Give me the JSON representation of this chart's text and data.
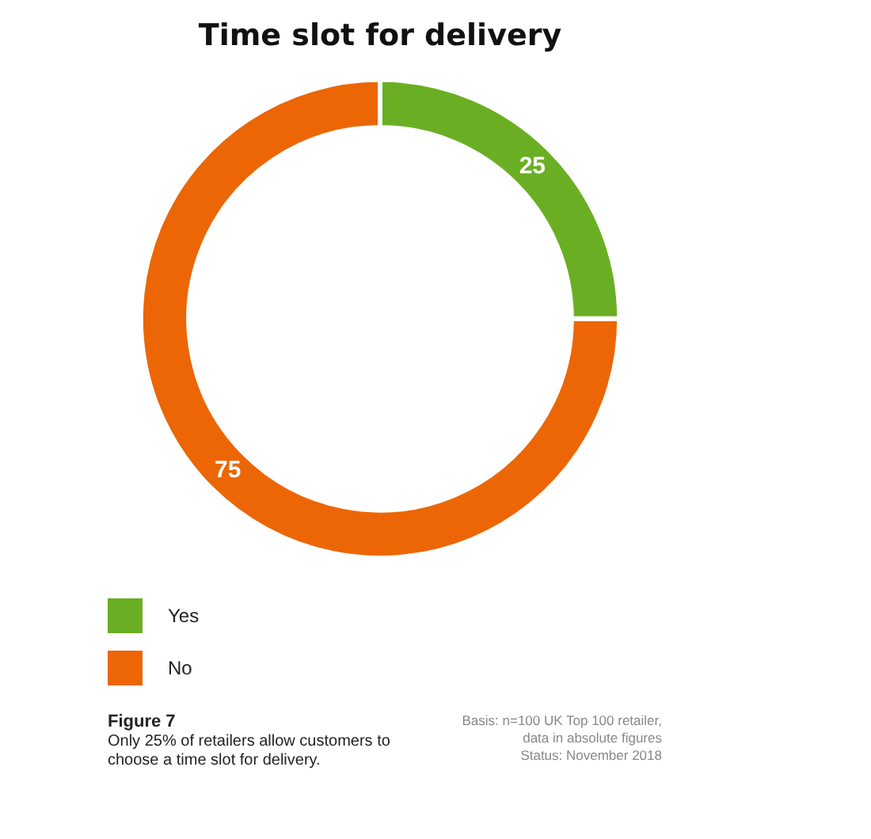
{
  "chart_data": {
    "type": "donut",
    "title": "Time slot for delivery",
    "categories": [
      "Yes",
      "No"
    ],
    "values": [
      25,
      75
    ],
    "colors": [
      "#6aaf23",
      "#ec6605"
    ],
    "data_labels": true,
    "legend": "bottom left",
    "annotations": [
      "Figure 7",
      "Only 25% of retailers allow customers to choose a time slot for delivery.",
      "Basis: n=100 UK Top 100 retailer,",
      "data in absolute figures",
      "Status: November 2018"
    ]
  }
}
